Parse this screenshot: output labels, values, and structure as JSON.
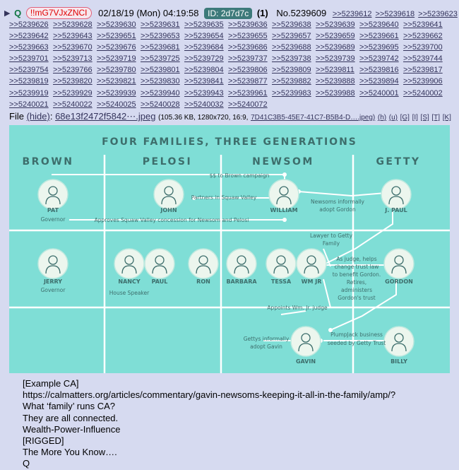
{
  "header": {
    "q_label": "Q",
    "tripcode": "!!mG7VJxZNCI",
    "date": "02/18/19 (Mon) 04:19:58",
    "id": "ID: 2d7d7c",
    "count": "(1)",
    "post_number": "No.5239609",
    "header_replies": [
      ">>5239612",
      ">>5239618",
      ">>5239623"
    ]
  },
  "replies": [
    ">>5239626",
    ">>5239628",
    ">>5239630",
    ">>5239631",
    ">>5239635",
    ">>5239636",
    ">>5239638",
    ">>5239639",
    ">>5239640",
    ">>5239641",
    ">>5239642",
    ">>5239643",
    ">>5239651",
    ">>5239653",
    ">>5239654",
    ">>5239655",
    ">>5239657",
    ">>5239659",
    ">>5239661",
    ">>5239662",
    ">>5239663",
    ">>5239670",
    ">>5239676",
    ">>5239681",
    ">>5239684",
    ">>5239686",
    ">>5239688",
    ">>5239689",
    ">>5239695",
    ">>5239700",
    ">>5239701",
    ">>5239713",
    ">>5239719",
    ">>5239725",
    ">>5239729",
    ">>5239737",
    ">>5239738",
    ">>5239739",
    ">>5239742",
    ">>5239744",
    ">>5239754",
    ">>5239766",
    ">>5239780",
    ">>5239801",
    ">>5239804",
    ">>5239806",
    ">>5239809",
    ">>5239811",
    ">>5239816",
    ">>5239817",
    ">>5239819",
    ">>5239820",
    ">>5239821",
    ">>5239830",
    ">>5239841",
    ">>5239877",
    ">>5239882",
    ">>5239888",
    ">>5239894",
    ">>5239906",
    ">>5239919",
    ">>5239929",
    ">>5239939",
    ">>5239940",
    ">>5239943",
    ">>5239961",
    ">>5239983",
    ">>5239988",
    ">>5240001",
    ">>5240002",
    ">>5240021",
    ">>5240022",
    ">>5240025",
    ">>5240028",
    ">>5240032",
    ">>5240072"
  ],
  "file": {
    "label": "File",
    "hide": "(hide)",
    "filename": "68e13f2472f5842⋯.jpeg",
    "meta": "(105.36 KB, 1280x720, 16:9,",
    "origname": "7D41C3B5-45E7-41C7-B5B4-D….jpeg)",
    "links": [
      "(h)",
      "(u)",
      "[G]",
      "[I]",
      "[S]",
      "[T]",
      "[K]"
    ]
  },
  "graphic": {
    "title": "FOUR FAMILIES, THREE GENERATIONS",
    "families": [
      "BROWN",
      "PELOSI",
      "NEWSOM",
      "GETTY"
    ],
    "colors": {
      "background": "#7fded6",
      "ink": "#3d6e6c",
      "line": "#ffffff",
      "circle": "#ecf6ee"
    },
    "people": [
      {
        "name": "PAT",
        "sub": "Governor",
        "icon": "man-icon"
      },
      {
        "name": "JOHN",
        "sub": "",
        "icon": "man-icon"
      },
      {
        "name": "WILLIAM",
        "sub": "",
        "icon": "man-icon"
      },
      {
        "name": "J. PAUL",
        "sub": "",
        "icon": "businessman-icon"
      },
      {
        "name": "JERRY",
        "sub": "Governor",
        "icon": "man-icon"
      },
      {
        "name": "NANCY",
        "sub": "House Speaker",
        "icon": "woman-icon"
      },
      {
        "name": "PAUL",
        "sub": "",
        "icon": "man-icon"
      },
      {
        "name": "RON",
        "sub": "",
        "icon": "man-icon"
      },
      {
        "name": "BARBARA",
        "sub": "",
        "icon": "woman-icon"
      },
      {
        "name": "TESSA",
        "sub": "",
        "icon": "woman-icon"
      },
      {
        "name": "WM JR",
        "sub": "",
        "icon": "man-icon"
      },
      {
        "name": "GORDON",
        "sub": "",
        "icon": "businessman-icon"
      },
      {
        "name": "GAVIN",
        "sub": "",
        "icon": "man-icon"
      },
      {
        "name": "BILLY",
        "sub": "",
        "icon": "man-icon"
      }
    ],
    "notes": [
      "$$ to Brown campaign",
      "Partners in Squaw Valley",
      "Newsoms informally",
      "adopt Gordon",
      "Approves Squaw Valley concession for Newsom and Pelosi",
      "Lawyer to Getty",
      "Family",
      "As judge, helps",
      "change trust law",
      "to benefit Gordon.",
      "Retires,",
      "administers",
      "Gordon's trust",
      "Appoints Wm. Jr. judge",
      "PlumpJack business",
      "seeded by Getty Trust",
      "Gettys informally",
      "adopt Gavin"
    ]
  },
  "body_lines": [
    "[Example CA]",
    "https://calmatters.org/articles/commentary/gavin-newsoms-keeping-it-all-in-the-family/amp/?",
    "What ‘family’ runs CA?",
    "They are all connected.",
    "Wealth-Power-Influence",
    "[RIGGED]",
    "The More You Know….",
    "Q"
  ]
}
